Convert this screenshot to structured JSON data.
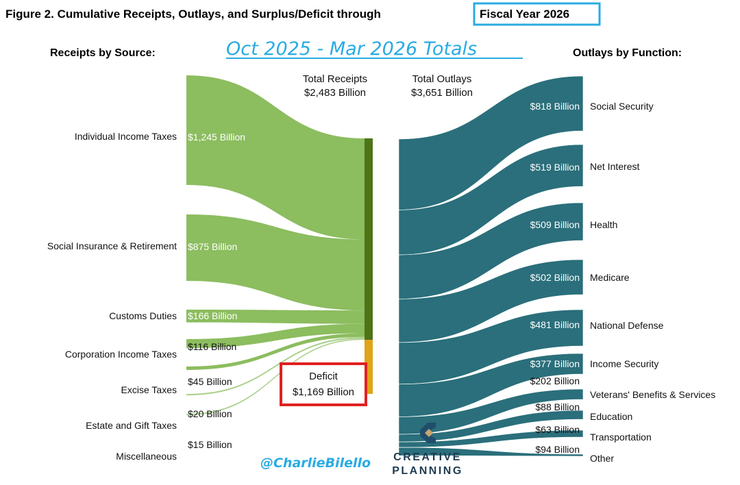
{
  "title_prefix": "Figure 2. Cumulative Receipts, Outlays, and Surplus/Deficit through",
  "title_highlight": "Fiscal Year 2026",
  "subtitle": "Oct 2025 - Mar 2026 Totals",
  "receipts_header": "Receipts by Source:",
  "outlays_header": "Outlays by Function:",
  "total_receipts_label": "Total Receipts",
  "total_receipts_value": "$2,483 Billion",
  "total_outlays_label": "Total Outlays",
  "total_outlays_value": "$3,651 Billion",
  "deficit_label": "Deficit",
  "deficit_value": "$1,169 Billion",
  "handle": "@CharlieBilello",
  "brand_line1": "CREATIVE",
  "brand_line2": "PLANNING",
  "colors": {
    "receipts_flow": "#8cbd5f",
    "receipts_bar": "#4d7417",
    "deficit_bar": "#e0a417",
    "outlays": "#2a6f7b",
    "highlight_box": "#29abe2",
    "deficit_box": "#e02020"
  },
  "chart_data": {
    "type": "sankey",
    "unit": "Billion USD",
    "receipts": [
      {
        "name": "Individual Income Taxes",
        "value": 1245,
        "label": "$1,245 Billion"
      },
      {
        "name": "Social Insurance & Retirement",
        "value": 875,
        "label": "$875 Billion"
      },
      {
        "name": "Customs Duties",
        "value": 166,
        "label": "$166 Billion"
      },
      {
        "name": "Corporation Income Taxes",
        "value": 116,
        "label": "$116 Billion"
      },
      {
        "name": "Excise Taxes",
        "value": 45,
        "label": "$45 Billion"
      },
      {
        "name": "Estate and Gift Taxes",
        "value": 20,
        "label": "$20 Billion"
      },
      {
        "name": "Miscellaneous",
        "value": 15,
        "label": "$15 Billion"
      }
    ],
    "total_receipts": 2483,
    "deficit": 1169,
    "total_outlays": 3651,
    "outlays": [
      {
        "name": "Social Security",
        "value": 818,
        "label": "$818 Billion"
      },
      {
        "name": "Net Interest",
        "value": 519,
        "label": "$519 Billion"
      },
      {
        "name": "Health",
        "value": 509,
        "label": "$509 Billion"
      },
      {
        "name": "Medicare",
        "value": 502,
        "label": "$502 Billion"
      },
      {
        "name": "National Defense",
        "value": 481,
        "label": "$481 Billion"
      },
      {
        "name": "Income Security",
        "value": 377,
        "label": "$377 Billion"
      },
      {
        "name": "Veterans' Benefits & Services",
        "value": 202,
        "label": "$202 Billion"
      },
      {
        "name": "Education",
        "value": 88,
        "label": "$88 Billion"
      },
      {
        "name": "Transportation",
        "value": 63,
        "label": "$63 Billion"
      },
      {
        "name": "Other",
        "value": 94,
        "label": "$94 Billion"
      }
    ]
  }
}
